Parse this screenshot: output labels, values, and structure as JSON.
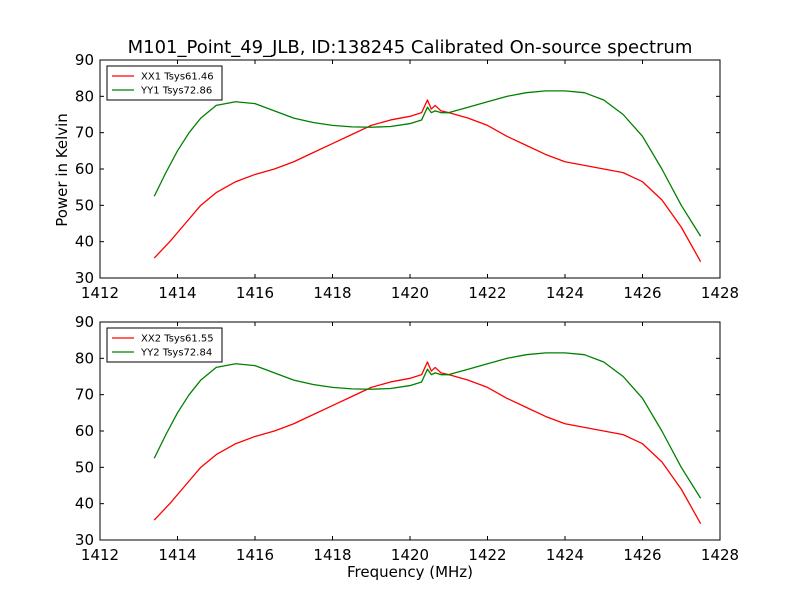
{
  "chart_data": [
    {
      "type": "line",
      "title": "M101_Point_49_JLB, ID:138245 Calibrated On-source spectrum",
      "xlabel": "",
      "ylabel": "Power in Kelvin",
      "xlim": [
        1412,
        1428
      ],
      "ylim": [
        30,
        90
      ],
      "xticks": [
        "1412",
        "1414",
        "1416",
        "1418",
        "1420",
        "1422",
        "1424",
        "1426",
        "1428"
      ],
      "yticks": [
        "30",
        "40",
        "50",
        "60",
        "70",
        "80",
        "90"
      ],
      "legend": "top-left",
      "series": [
        {
          "name": "XX1 Tsys61.46",
          "color": "#ff0000",
          "points": [
            [
              1413.4,
              35.5
            ],
            [
              1413.8,
              40
            ],
            [
              1414.2,
              45
            ],
            [
              1414.6,
              50
            ],
            [
              1415,
              53.5
            ],
            [
              1415.5,
              56.5
            ],
            [
              1416,
              58.5
            ],
            [
              1416.5,
              60
            ],
            [
              1417,
              62
            ],
            [
              1417.5,
              64.5
            ],
            [
              1418,
              67
            ],
            [
              1418.5,
              69.5
            ],
            [
              1419,
              72
            ],
            [
              1419.5,
              73.5
            ],
            [
              1420,
              74.5
            ],
            [
              1420.3,
              75.5
            ],
            [
              1420.45,
              79
            ],
            [
              1420.55,
              76.5
            ],
            [
              1420.65,
              77.5
            ],
            [
              1420.8,
              76
            ],
            [
              1421,
              75.5
            ],
            [
              1421.5,
              74
            ],
            [
              1422,
              72
            ],
            [
              1422.5,
              69
            ],
            [
              1423,
              66.5
            ],
            [
              1423.5,
              64
            ],
            [
              1424,
              62
            ],
            [
              1424.5,
              61
            ],
            [
              1425,
              60
            ],
            [
              1425.5,
              59
            ],
            [
              1426,
              56.5
            ],
            [
              1426.5,
              51.5
            ],
            [
              1427,
              44
            ],
            [
              1427.5,
              34.5
            ]
          ]
        },
        {
          "name": "YY1 Tsys72.86",
          "color": "#008000",
          "points": [
            [
              1413.4,
              52.5
            ],
            [
              1413.7,
              59
            ],
            [
              1414,
              65
            ],
            [
              1414.3,
              70
            ],
            [
              1414.6,
              74
            ],
            [
              1415,
              77.5
            ],
            [
              1415.5,
              78.5
            ],
            [
              1416,
              78
            ],
            [
              1416.5,
              76
            ],
            [
              1417,
              74
            ],
            [
              1417.5,
              72.8
            ],
            [
              1418,
              72
            ],
            [
              1418.5,
              71.6
            ],
            [
              1419,
              71.5
            ],
            [
              1419.5,
              71.7
            ],
            [
              1420,
              72.5
            ],
            [
              1420.3,
              73.5
            ],
            [
              1420.45,
              77
            ],
            [
              1420.55,
              75.5
            ],
            [
              1420.65,
              76
            ],
            [
              1420.8,
              75.5
            ],
            [
              1421,
              75.5
            ],
            [
              1421.5,
              77
            ],
            [
              1422,
              78.5
            ],
            [
              1422.5,
              80
            ],
            [
              1423,
              81
            ],
            [
              1423.5,
              81.5
            ],
            [
              1424,
              81.5
            ],
            [
              1424.5,
              81
            ],
            [
              1425,
              79
            ],
            [
              1425.5,
              75
            ],
            [
              1426,
              69
            ],
            [
              1426.5,
              60
            ],
            [
              1427,
              50
            ],
            [
              1427.5,
              41.5
            ]
          ]
        }
      ]
    },
    {
      "type": "line",
      "title": "",
      "xlabel": "Frequency (MHz)",
      "ylabel": "",
      "xlim": [
        1412,
        1428
      ],
      "ylim": [
        30,
        90
      ],
      "xticks": [
        "1412",
        "1414",
        "1416",
        "1418",
        "1420",
        "1422",
        "1424",
        "1426",
        "1428"
      ],
      "yticks": [
        "30",
        "40",
        "50",
        "60",
        "70",
        "80",
        "90"
      ],
      "legend": "top-left",
      "series": [
        {
          "name": "XX2 Tsys61.55",
          "color": "#ff0000",
          "points": [
            [
              1413.4,
              35.5
            ],
            [
              1413.8,
              40
            ],
            [
              1414.2,
              45
            ],
            [
              1414.6,
              50
            ],
            [
              1415,
              53.5
            ],
            [
              1415.5,
              56.5
            ],
            [
              1416,
              58.5
            ],
            [
              1416.5,
              60
            ],
            [
              1417,
              62
            ],
            [
              1417.5,
              64.5
            ],
            [
              1418,
              67
            ],
            [
              1418.5,
              69.5
            ],
            [
              1419,
              72
            ],
            [
              1419.5,
              73.5
            ],
            [
              1420,
              74.5
            ],
            [
              1420.3,
              75.5
            ],
            [
              1420.45,
              79
            ],
            [
              1420.55,
              76.5
            ],
            [
              1420.65,
              77.5
            ],
            [
              1420.8,
              76
            ],
            [
              1421,
              75.5
            ],
            [
              1421.5,
              74
            ],
            [
              1422,
              72
            ],
            [
              1422.5,
              69
            ],
            [
              1423,
              66.5
            ],
            [
              1423.5,
              64
            ],
            [
              1424,
              62
            ],
            [
              1424.5,
              61
            ],
            [
              1425,
              60
            ],
            [
              1425.5,
              59
            ],
            [
              1426,
              56.5
            ],
            [
              1426.5,
              51.5
            ],
            [
              1427,
              44
            ],
            [
              1427.5,
              34.5
            ]
          ]
        },
        {
          "name": "YY2 Tsys72.84",
          "color": "#008000",
          "points": [
            [
              1413.4,
              52.5
            ],
            [
              1413.7,
              59
            ],
            [
              1414,
              65
            ],
            [
              1414.3,
              70
            ],
            [
              1414.6,
              74
            ],
            [
              1415,
              77.5
            ],
            [
              1415.5,
              78.5
            ],
            [
              1416,
              78
            ],
            [
              1416.5,
              76
            ],
            [
              1417,
              74
            ],
            [
              1417.5,
              72.8
            ],
            [
              1418,
              72
            ],
            [
              1418.5,
              71.6
            ],
            [
              1419,
              71.5
            ],
            [
              1419.5,
              71.7
            ],
            [
              1420,
              72.5
            ],
            [
              1420.3,
              73.5
            ],
            [
              1420.45,
              77
            ],
            [
              1420.55,
              75.5
            ],
            [
              1420.65,
              76
            ],
            [
              1420.8,
              75.5
            ],
            [
              1421,
              75.5
            ],
            [
              1421.5,
              77
            ],
            [
              1422,
              78.5
            ],
            [
              1422.5,
              80
            ],
            [
              1423,
              81
            ],
            [
              1423.5,
              81.5
            ],
            [
              1424,
              81.5
            ],
            [
              1424.5,
              81
            ],
            [
              1425,
              79
            ],
            [
              1425.5,
              75
            ],
            [
              1426,
              69
            ],
            [
              1426.5,
              60
            ],
            [
              1427,
              50
            ],
            [
              1427.5,
              41.5
            ]
          ]
        }
      ]
    }
  ]
}
